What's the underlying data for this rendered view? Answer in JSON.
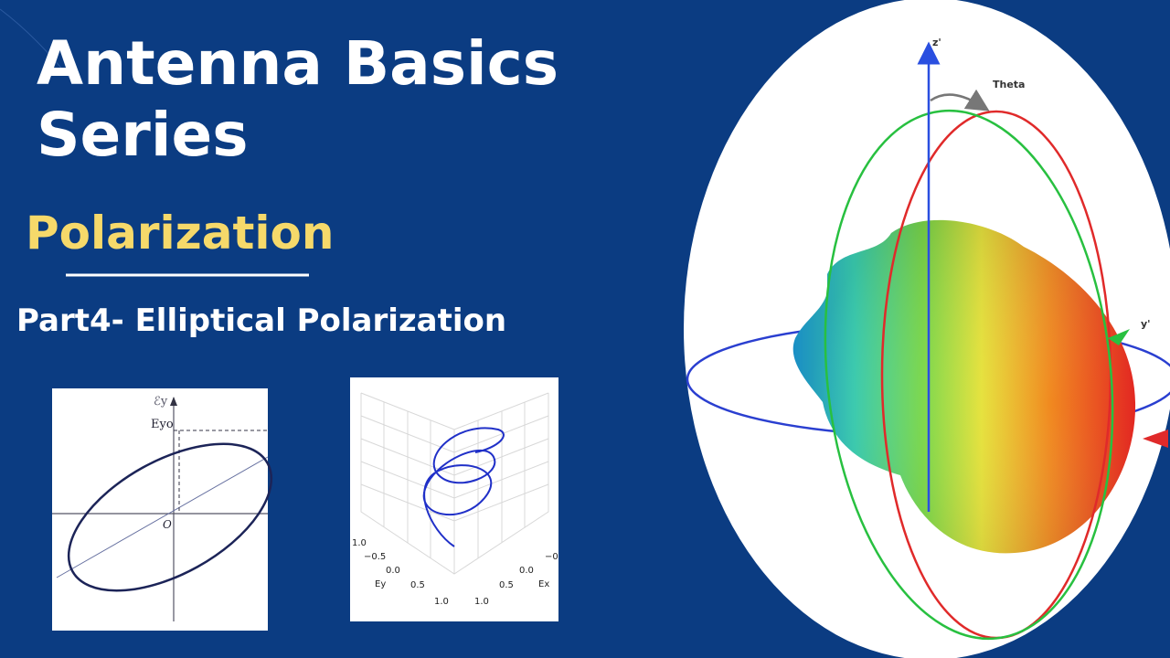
{
  "header": {
    "title_lines": [
      "Antenna Basics",
      "Series"
    ],
    "topic": "Polarization",
    "part": "Part4- Elliptical Polarization"
  },
  "ellipse_figure": {
    "y_axis_label": "ℰy",
    "peak_label": "Eyo",
    "origin_label": "O"
  },
  "helix_figure": {
    "ey_ticks": [
      "1.0",
      "−0.5",
      "0.0",
      "0.5",
      "1.0"
    ],
    "ex_ticks": [
      "−0",
      "0.0",
      "0.5",
      "1.0"
    ],
    "ey_label": "Ey",
    "ex_label": "Ex"
  },
  "pattern_figure": {
    "z_label": "z'",
    "theta_label": "Theta",
    "y_label": "y'"
  }
}
